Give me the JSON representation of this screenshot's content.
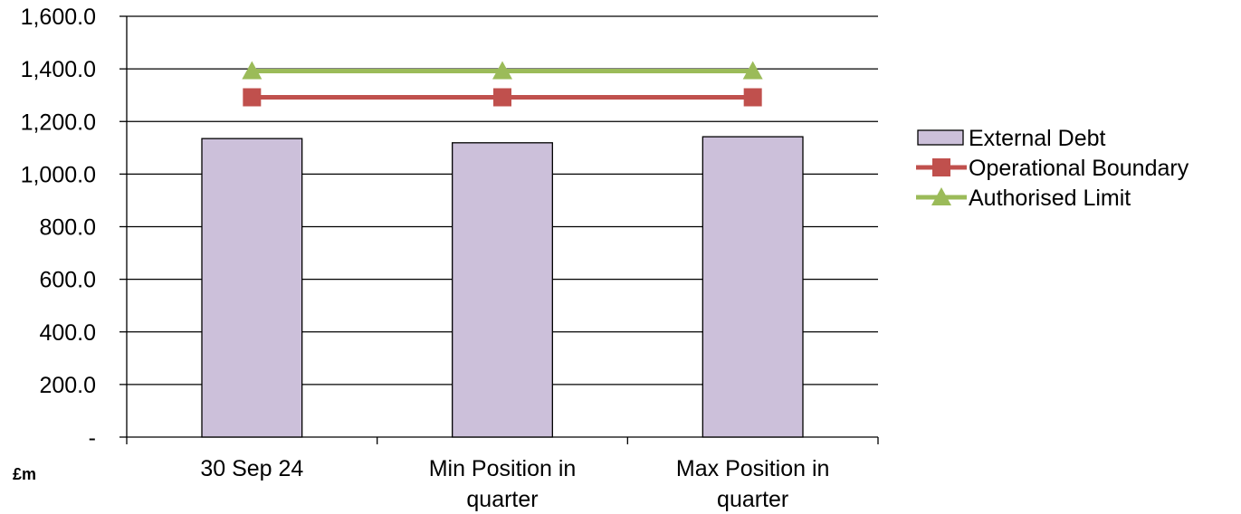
{
  "chart_data": {
    "type": "bar",
    "categories": [
      [
        "30 Sep 24"
      ],
      [
        "Min Position in",
        "quarter"
      ],
      [
        "Max Position in",
        "quarter"
      ]
    ],
    "category_labels": [
      "30 Sep 24",
      "Min Position in quarter",
      "Max Position in quarter"
    ],
    "series": [
      {
        "name": "External Debt",
        "kind": "bar",
        "values": [
          1135,
          1119,
          1142
        ],
        "color": "#ccc0da",
        "stroke": "#000000"
      },
      {
        "name": "Operational Boundary",
        "kind": "line",
        "marker": "square",
        "values": [
          1292,
          1292,
          1292
        ],
        "color": "#c0504d"
      },
      {
        "name": "Authorised Limit",
        "kind": "line",
        "marker": "triangle",
        "values": [
          1392,
          1392,
          1392
        ],
        "color": "#9bbb59"
      }
    ],
    "ylim": [
      0,
      1600
    ],
    "y_ticks": [
      0,
      200,
      400,
      600,
      800,
      1000,
      1200,
      1400,
      1600
    ],
    "y_tick_labels": [
      "-",
      "200.0",
      "400.0",
      "600.0",
      "800.0",
      "1,000.0",
      "1,200.0",
      "1,400.0",
      "1,600.0"
    ],
    "ylabel": "£m",
    "grid": true,
    "legend_position": "right"
  }
}
